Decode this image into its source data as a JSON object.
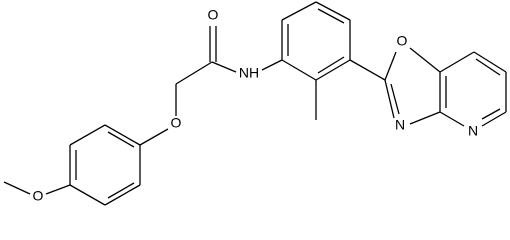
{
  "atoms": {
    "labels": [
      "O",
      "NH",
      "O",
      "O",
      "O",
      "N",
      "N"
    ]
  }
}
